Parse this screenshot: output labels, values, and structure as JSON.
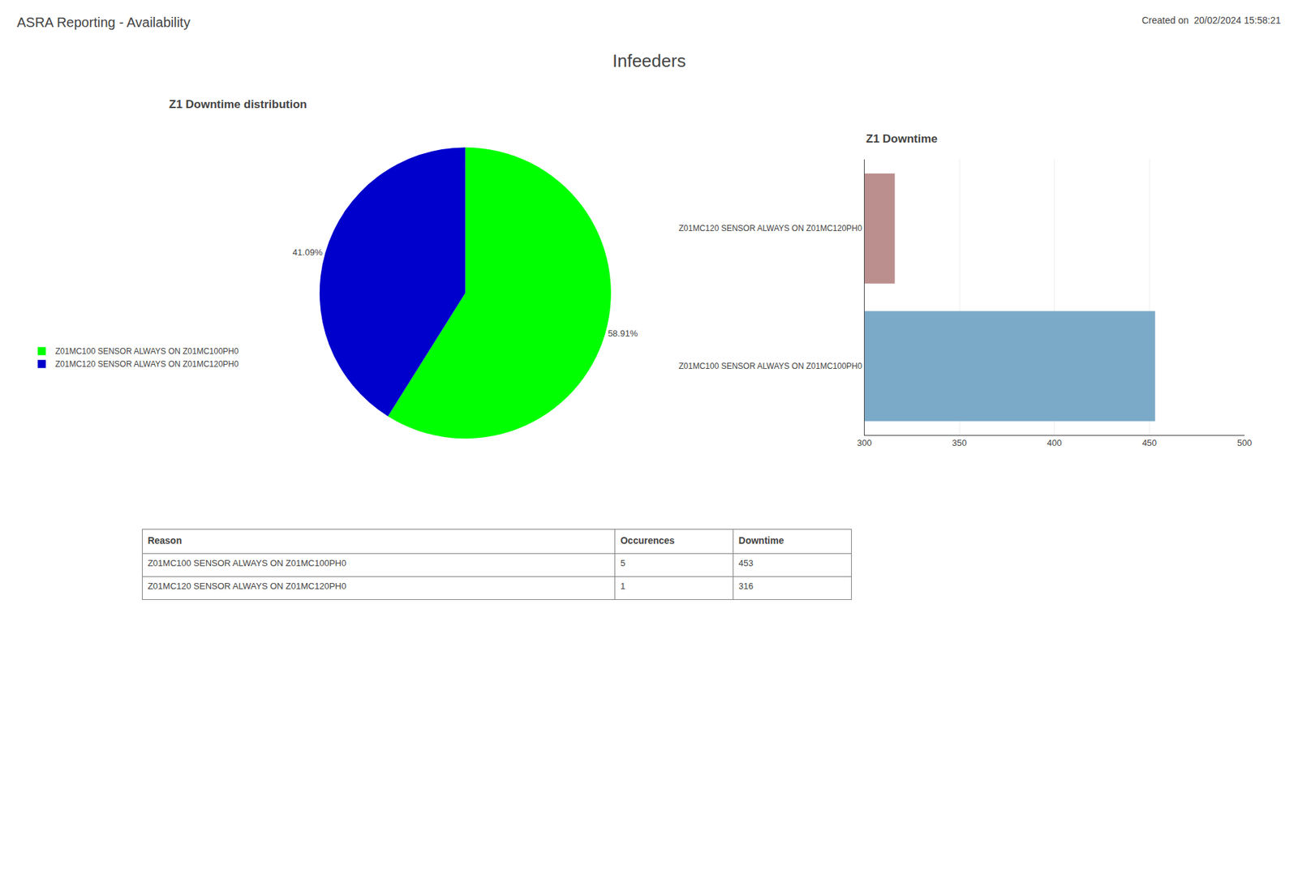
{
  "title": "ASRA Reporting - Availability",
  "subtitle": "Created on  20/02/2024 15:58:21",
  "annotations": [
    "Infeeders"
  ],
  "chart_data": [
    {
      "type": "pie",
      "title": "Z1 Downtime distribution",
      "categories": [
        "Z01MC100 SENSOR ALWAYS ON Z01MC100PH0",
        "Z01MC120 SENSOR ALWAYS ON Z01MC120PH0"
      ],
      "values": [
        58.91,
        41.09
      ],
      "value_labels": [
        "58.91%",
        "41.09%"
      ],
      "colors": [
        "#00FF00",
        "#0000CC"
      ],
      "data_labels": true,
      "legend": "left"
    },
    {
      "type": "bar",
      "title": "Z1 Downtime",
      "orientation": "horizontal",
      "categories": [
        "Z01MC120 SENSOR ALWAYS ON Z01MC120PH0",
        "Z01MC100 SENSOR ALWAYS ON Z01MC100PH0"
      ],
      "values": [
        316,
        453
      ],
      "colors": [
        "#BC8F8F",
        "#7AAAC8"
      ],
      "xlim": [
        300,
        500
      ],
      "xticks": [
        300,
        350,
        400,
        450,
        500
      ],
      "grid": true
    },
    {
      "type": "table",
      "columns": [
        "Reason",
        "Occurences",
        "Downtime"
      ],
      "rows": [
        [
          "Z01MC100 SENSOR ALWAYS ON Z01MC100PH0",
          "5",
          "453"
        ],
        [
          "Z01MC120 SENSOR ALWAYS ON Z01MC120PH0",
          "1",
          "316"
        ]
      ]
    }
  ]
}
